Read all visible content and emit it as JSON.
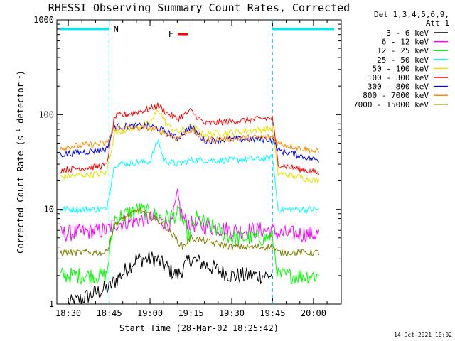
{
  "chart_data": {
    "type": "line",
    "title": "RHESSI Observing Summary Count Rates, Corrected",
    "xlabel": "Start Time (28-Mar-02 18:25:42)",
    "ylabel_main": "Corrected Count Rate (s",
    "ylabel_sup1": "-1",
    "ylabel_mid": " detector",
    "ylabel_sup2": "-1",
    "ylabel_end": ")",
    "y_scale": "log",
    "ylim": [
      1,
      1000
    ],
    "xlim_minutes": [
      18.43,
      20.17
    ],
    "x_ticks": [
      {
        "label": "18:30",
        "h": 18.5
      },
      {
        "label": "18:45",
        "h": 18.75
      },
      {
        "label": "19:00",
        "h": 19.0
      },
      {
        "label": "19:15",
        "h": 19.25
      },
      {
        "label": "19:30",
        "h": 19.5
      },
      {
        "label": "19:45",
        "h": 19.75
      },
      {
        "label": "20:00",
        "h": 20.0
      }
    ],
    "y_ticks": [
      {
        "label": "1",
        "v": 1
      },
      {
        "label": "10",
        "v": 10
      },
      {
        "label": "100",
        "v": 100
      },
      {
        "label": "1000",
        "v": 1000
      }
    ],
    "legend_header": [
      "Det 1,3,4,5,6,9,",
      "Att 1"
    ],
    "legend_position": "right",
    "series": [
      {
        "name": "3 - 6 keV",
        "color": "#000000",
        "x": [
          "18:30",
          "18:45",
          "18:55",
          "19:02",
          "19:10",
          "19:15",
          "19:30",
          "19:45"
        ],
        "y": [
          1,
          1.5,
          3,
          3,
          2,
          3,
          2,
          2
        ]
      },
      {
        "name": "6 - 12 keV",
        "color": "#ff00ff",
        "x": [
          "18:27",
          "18:44",
          "18:47",
          "19:00",
          "19:08",
          "19:10",
          "19:12",
          "19:15",
          "19:30",
          "19:45",
          "19:47",
          "20:02"
        ],
        "y": [
          5.5,
          6,
          7,
          8,
          7,
          14,
          8,
          7,
          6,
          6,
          5.5,
          5.5
        ]
      },
      {
        "name": "12 - 25 keV",
        "color": "#00ff00",
        "x": [
          "18:27",
          "18:44",
          "18:47",
          "18:56",
          "19:05",
          "19:11",
          "19:14",
          "19:17",
          "19:30",
          "19:45",
          "19:47",
          "20:02"
        ],
        "y": [
          2,
          2,
          8,
          10,
          8,
          9,
          5,
          8,
          5,
          5,
          2,
          2
        ]
      },
      {
        "name": "25 - 50 keV",
        "color": "#00ffff",
        "x": [
          "18:27",
          "18:44",
          "18:47",
          "19:00",
          "19:03",
          "19:05",
          "19:10",
          "19:15",
          "19:30",
          "19:45",
          "19:47",
          "20:02"
        ],
        "y": [
          10,
          10,
          30,
          32,
          55,
          33,
          30,
          33,
          33,
          35,
          10,
          10
        ]
      },
      {
        "name": "50 - 100 keV",
        "color": "#e6e600",
        "x": [
          "18:27",
          "18:44",
          "18:47",
          "19:00",
          "19:03",
          "19:06",
          "19:10",
          "19:15",
          "19:20",
          "19:30",
          "19:45",
          "19:47",
          "20:02"
        ],
        "y": [
          22,
          24,
          65,
          80,
          115,
          80,
          65,
          75,
          62,
          65,
          72,
          24,
          20
        ]
      },
      {
        "name": "100 - 300 keV",
        "color": "#ff0000",
        "x": [
          "18:27",
          "18:44",
          "18:47",
          "19:00",
          "19:03",
          "19:06",
          "19:10",
          "19:15",
          "19:20",
          "19:30",
          "19:45",
          "19:47",
          "20:02"
        ],
        "y": [
          26,
          29,
          95,
          115,
          125,
          105,
          90,
          110,
          80,
          85,
          92,
          30,
          24
        ]
      },
      {
        "name": "300 - 800 keV",
        "color": "#0000ff",
        "x": [
          "18:27",
          "18:44",
          "18:47",
          "19:00",
          "19:05",
          "19:10",
          "19:15",
          "19:20",
          "19:30",
          "19:45",
          "19:47",
          "20:02"
        ],
        "y": [
          38,
          43,
          75,
          76,
          68,
          56,
          75,
          53,
          55,
          55,
          42,
          33
        ]
      },
      {
        "name": "800 - 7000 keV",
        "color": "#ff8c00",
        "x": [
          "18:27",
          "18:44",
          "18:47",
          "19:00",
          "19:05",
          "19:10",
          "19:15",
          "19:20",
          "19:30",
          "19:45",
          "19:47",
          "20:02"
        ],
        "y": [
          45,
          50,
          72,
          72,
          65,
          56,
          70,
          54,
          56,
          58,
          50,
          40
        ]
      },
      {
        "name": "7000 - 15000 keV",
        "color": "#808000",
        "x": [
          "18:27",
          "18:44",
          "18:47",
          "18:56",
          "19:05",
          "19:12",
          "19:15",
          "19:30",
          "19:45",
          "19:47",
          "20:02"
        ],
        "y": [
          3.5,
          3.5,
          7,
          10,
          7,
          4,
          5,
          4,
          4,
          3.5,
          3.5
        ]
      }
    ],
    "annotations": [
      {
        "label": "N",
        "color": "#00e5ee"
      },
      {
        "label": "F",
        "color": "#ff0000"
      }
    ],
    "night_level": 800
  },
  "stamp": "14-Oct-2021 10:02"
}
